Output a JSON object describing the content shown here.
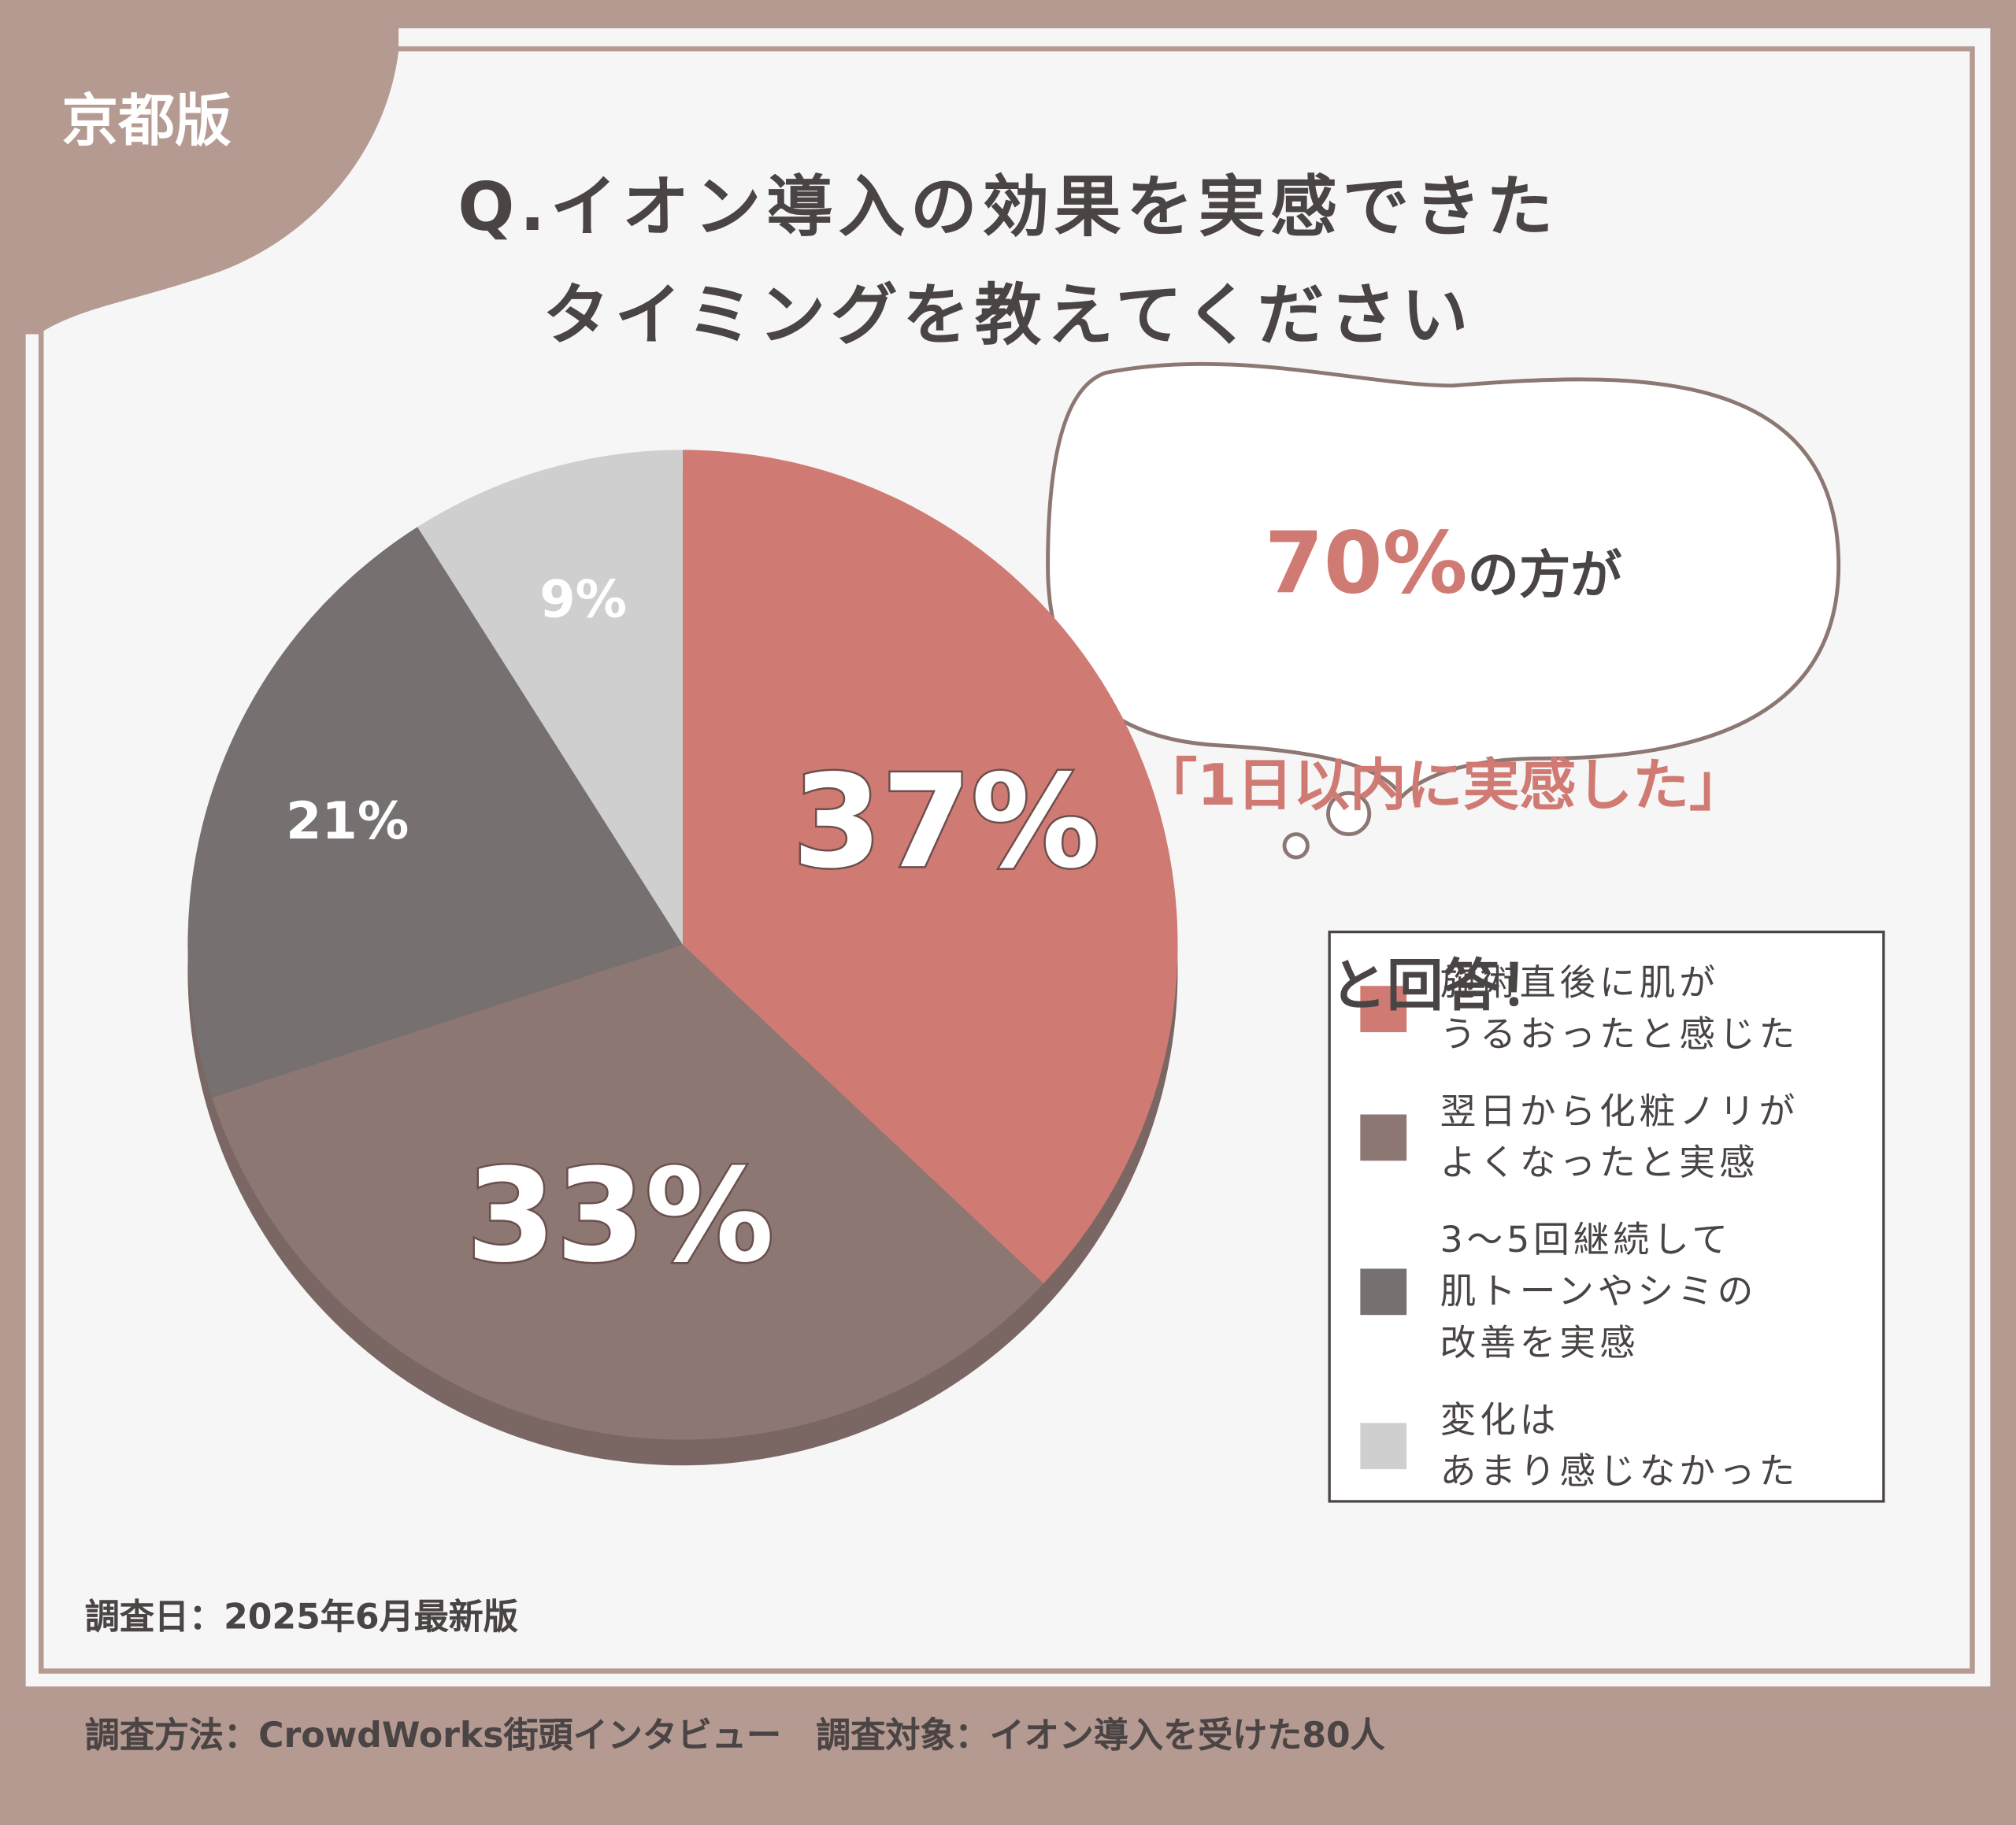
{
  "badge": "京都版",
  "chart_data": {
    "type": "pie",
    "title": "Q.イオン導入の効果を実感できた\nタイミングを教えてください",
    "categories": [
      "施術直後に肌が\nうるおったと感じた",
      "翌日から化粧ノリが\nよくなったと実感",
      "3〜5回継続して\n肌トーンやシミの\n改善を実感",
      "変化は\nあまり感じなかった"
    ],
    "values": [
      37,
      33,
      21,
      9
    ],
    "value_labels": [
      "37%",
      "33%",
      "21%",
      "9%"
    ],
    "colors": [
      "#d07a74",
      "#8c7773",
      "#767070",
      "#cfcfcf"
    ]
  },
  "callout": {
    "highlight": "70%",
    "rest": "の方が",
    "line2": "「1日以内に実感した」",
    "line3": "と回答！"
  },
  "footer": {
    "date": "調査日：2025年6月最新版",
    "method": "調査方法：CrowdWorks街頭インタビュー　調査対象：イオン導入を受けた80人"
  }
}
